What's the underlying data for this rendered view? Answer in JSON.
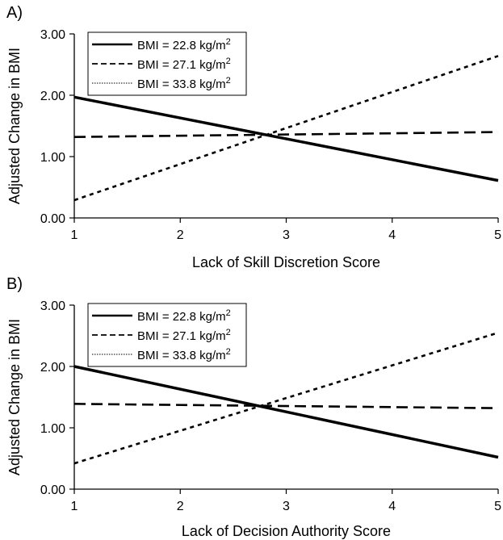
{
  "chart_data": [
    {
      "panel": "A)",
      "type": "line",
      "xlabel": "Lack of Skill Discretion Score",
      "ylabel": "Adjusted Change in BMI",
      "xlim": [
        1,
        5
      ],
      "ylim": [
        0,
        3
      ],
      "x_ticks": [
        "1",
        "2",
        "3",
        "4",
        "5"
      ],
      "y_ticks": [
        "0.00",
        "1.00",
        "2.00",
        "3.00"
      ],
      "legend_position": "top-left",
      "series": [
        {
          "name": "BMI = 22.8 kg/m",
          "sup": "2",
          "style": "solid",
          "x": [
            1,
            5
          ],
          "values": [
            1.97,
            0.61
          ]
        },
        {
          "name": "BMI = 27.1 kg/m",
          "sup": "2",
          "style": "dashed",
          "x": [
            1,
            5
          ],
          "values": [
            1.32,
            1.4
          ]
        },
        {
          "name": "BMI = 33.8 kg/m",
          "sup": "2",
          "style": "dotted",
          "x": [
            1,
            5
          ],
          "values": [
            0.29,
            2.64
          ]
        }
      ]
    },
    {
      "panel": "B)",
      "type": "line",
      "xlabel": "Lack of Decision Authority Score",
      "ylabel": "Adjusted Change in BMI",
      "xlim": [
        1,
        5
      ],
      "ylim": [
        0,
        3
      ],
      "x_ticks": [
        "1",
        "2",
        "3",
        "4",
        "5"
      ],
      "y_ticks": [
        "0.00",
        "1.00",
        "2.00",
        "3.00"
      ],
      "legend_position": "top-left",
      "series": [
        {
          "name": "BMI = 22.8 kg/m",
          "sup": "2",
          "style": "solid",
          "x": [
            1,
            5
          ],
          "values": [
            2.0,
            0.52
          ]
        },
        {
          "name": "BMI = 27.1 kg/m",
          "sup": "2",
          "style": "dashed",
          "x": [
            1,
            5
          ],
          "values": [
            1.39,
            1.32
          ]
        },
        {
          "name": "BMI = 33.8 kg/m",
          "sup": "2",
          "style": "dotted",
          "x": [
            1,
            5
          ],
          "values": [
            0.42,
            2.55
          ]
        }
      ]
    }
  ]
}
